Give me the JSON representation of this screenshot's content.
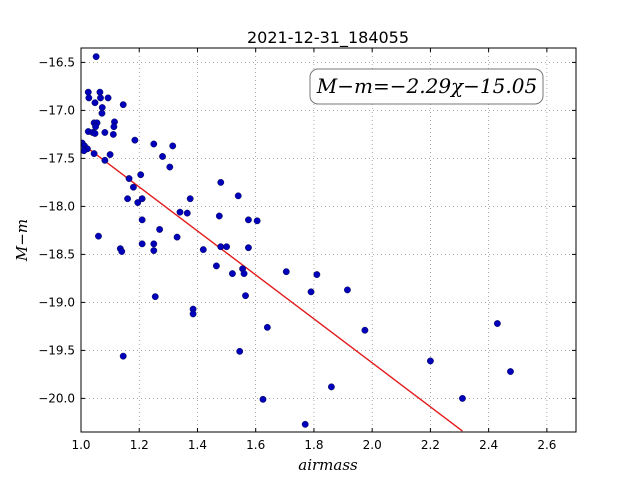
{
  "chart_data": {
    "type": "scatter",
    "title": "2021-12-31_184055",
    "xlabel": "airmass",
    "ylabel": "M−m",
    "xlim": [
      1.0,
      2.7
    ],
    "ylim": [
      -20.35,
      -16.35
    ],
    "y_inverted": true,
    "grid": true,
    "x_ticks": [
      1.0,
      1.2,
      1.4,
      1.6,
      1.8,
      2.0,
      2.2,
      2.4,
      2.6
    ],
    "x_tick_labels": [
      "1.0",
      "1.2",
      "1.4",
      "1.6",
      "1.8",
      "2.0",
      "2.2",
      "2.4",
      "2.6"
    ],
    "y_ticks": [
      -16.5,
      -17.0,
      -17.5,
      -18.0,
      -18.5,
      -19.0,
      -19.5,
      -20.0
    ],
    "y_tick_labels": [
      "−16.5",
      "−17.0",
      "−17.5",
      "−18.0",
      "−18.5",
      "−19.0",
      "−19.5",
      "−20.0"
    ],
    "equation_text": "M−m=−2.29χ−15.05",
    "fit": {
      "slope": -2.29,
      "intercept": -15.05,
      "x_range": [
        1.0,
        2.31
      ],
      "color": "#e31a1c"
    },
    "point_color": "#0000bb",
    "points": [
      [
        1.052,
        -16.44
      ],
      [
        1.025,
        -16.81
      ],
      [
        1.065,
        -16.81
      ],
      [
        1.027,
        -16.87
      ],
      [
        1.067,
        -16.87
      ],
      [
        1.093,
        -16.87
      ],
      [
        1.048,
        -16.92
      ],
      [
        1.073,
        -16.97
      ],
      [
        1.145,
        -16.94
      ],
      [
        1.072,
        -17.03
      ],
      [
        1.045,
        -17.13
      ],
      [
        1.055,
        -17.13
      ],
      [
        1.115,
        -17.12
      ],
      [
        1.05,
        -17.17
      ],
      [
        1.113,
        -17.17
      ],
      [
        1.025,
        -17.22
      ],
      [
        1.04,
        -17.23
      ],
      [
        1.048,
        -17.24
      ],
      [
        1.082,
        -17.23
      ],
      [
        1.111,
        -17.25
      ],
      [
        1.004,
        -17.34
      ],
      [
        1.012,
        -17.37
      ],
      [
        1.022,
        -17.4
      ],
      [
        1.01,
        -17.42
      ],
      [
        1.045,
        -17.45
      ],
      [
        1.1,
        -17.46
      ],
      [
        1.082,
        -17.52
      ],
      [
        1.185,
        -17.31
      ],
      [
        1.25,
        -17.35
      ],
      [
        1.315,
        -17.37
      ],
      [
        1.28,
        -17.48
      ],
      [
        1.305,
        -17.59
      ],
      [
        1.165,
        -17.71
      ],
      [
        1.205,
        -17.67
      ],
      [
        1.18,
        -17.8
      ],
      [
        1.195,
        -17.96
      ],
      [
        1.16,
        -17.92
      ],
      [
        1.21,
        -17.92
      ],
      [
        1.48,
        -17.75
      ],
      [
        1.375,
        -17.92
      ],
      [
        1.54,
        -17.89
      ],
      [
        1.34,
        -18.06
      ],
      [
        1.365,
        -18.07
      ],
      [
        1.475,
        -18.1
      ],
      [
        1.21,
        -18.14
      ],
      [
        1.575,
        -18.14
      ],
      [
        1.605,
        -18.15
      ],
      [
        1.27,
        -18.24
      ],
      [
        1.06,
        -18.31
      ],
      [
        1.33,
        -18.32
      ],
      [
        1.21,
        -18.39
      ],
      [
        1.25,
        -18.39
      ],
      [
        1.48,
        -18.42
      ],
      [
        1.5,
        -18.42
      ],
      [
        1.575,
        -18.43
      ],
      [
        1.135,
        -18.44
      ],
      [
        1.14,
        -18.47
      ],
      [
        1.25,
        -18.46
      ],
      [
        1.42,
        -18.45
      ],
      [
        1.465,
        -18.62
      ],
      [
        1.555,
        -18.65
      ],
      [
        1.52,
        -18.7
      ],
      [
        1.56,
        -18.7
      ],
      [
        1.705,
        -18.68
      ],
      [
        1.81,
        -18.71
      ],
      [
        1.255,
        -18.94
      ],
      [
        1.565,
        -18.93
      ],
      [
        1.79,
        -18.89
      ],
      [
        1.915,
        -18.87
      ],
      [
        1.385,
        -19.07
      ],
      [
        1.385,
        -19.12
      ],
      [
        1.64,
        -19.26
      ],
      [
        1.975,
        -19.29
      ],
      [
        2.43,
        -19.22
      ],
      [
        1.145,
        -19.56
      ],
      [
        1.545,
        -19.51
      ],
      [
        2.2,
        -19.61
      ],
      [
        2.475,
        -19.72
      ],
      [
        1.86,
        -19.88
      ],
      [
        1.625,
        -20.01
      ],
      [
        2.31,
        -20.0
      ],
      [
        1.77,
        -20.27
      ]
    ]
  }
}
